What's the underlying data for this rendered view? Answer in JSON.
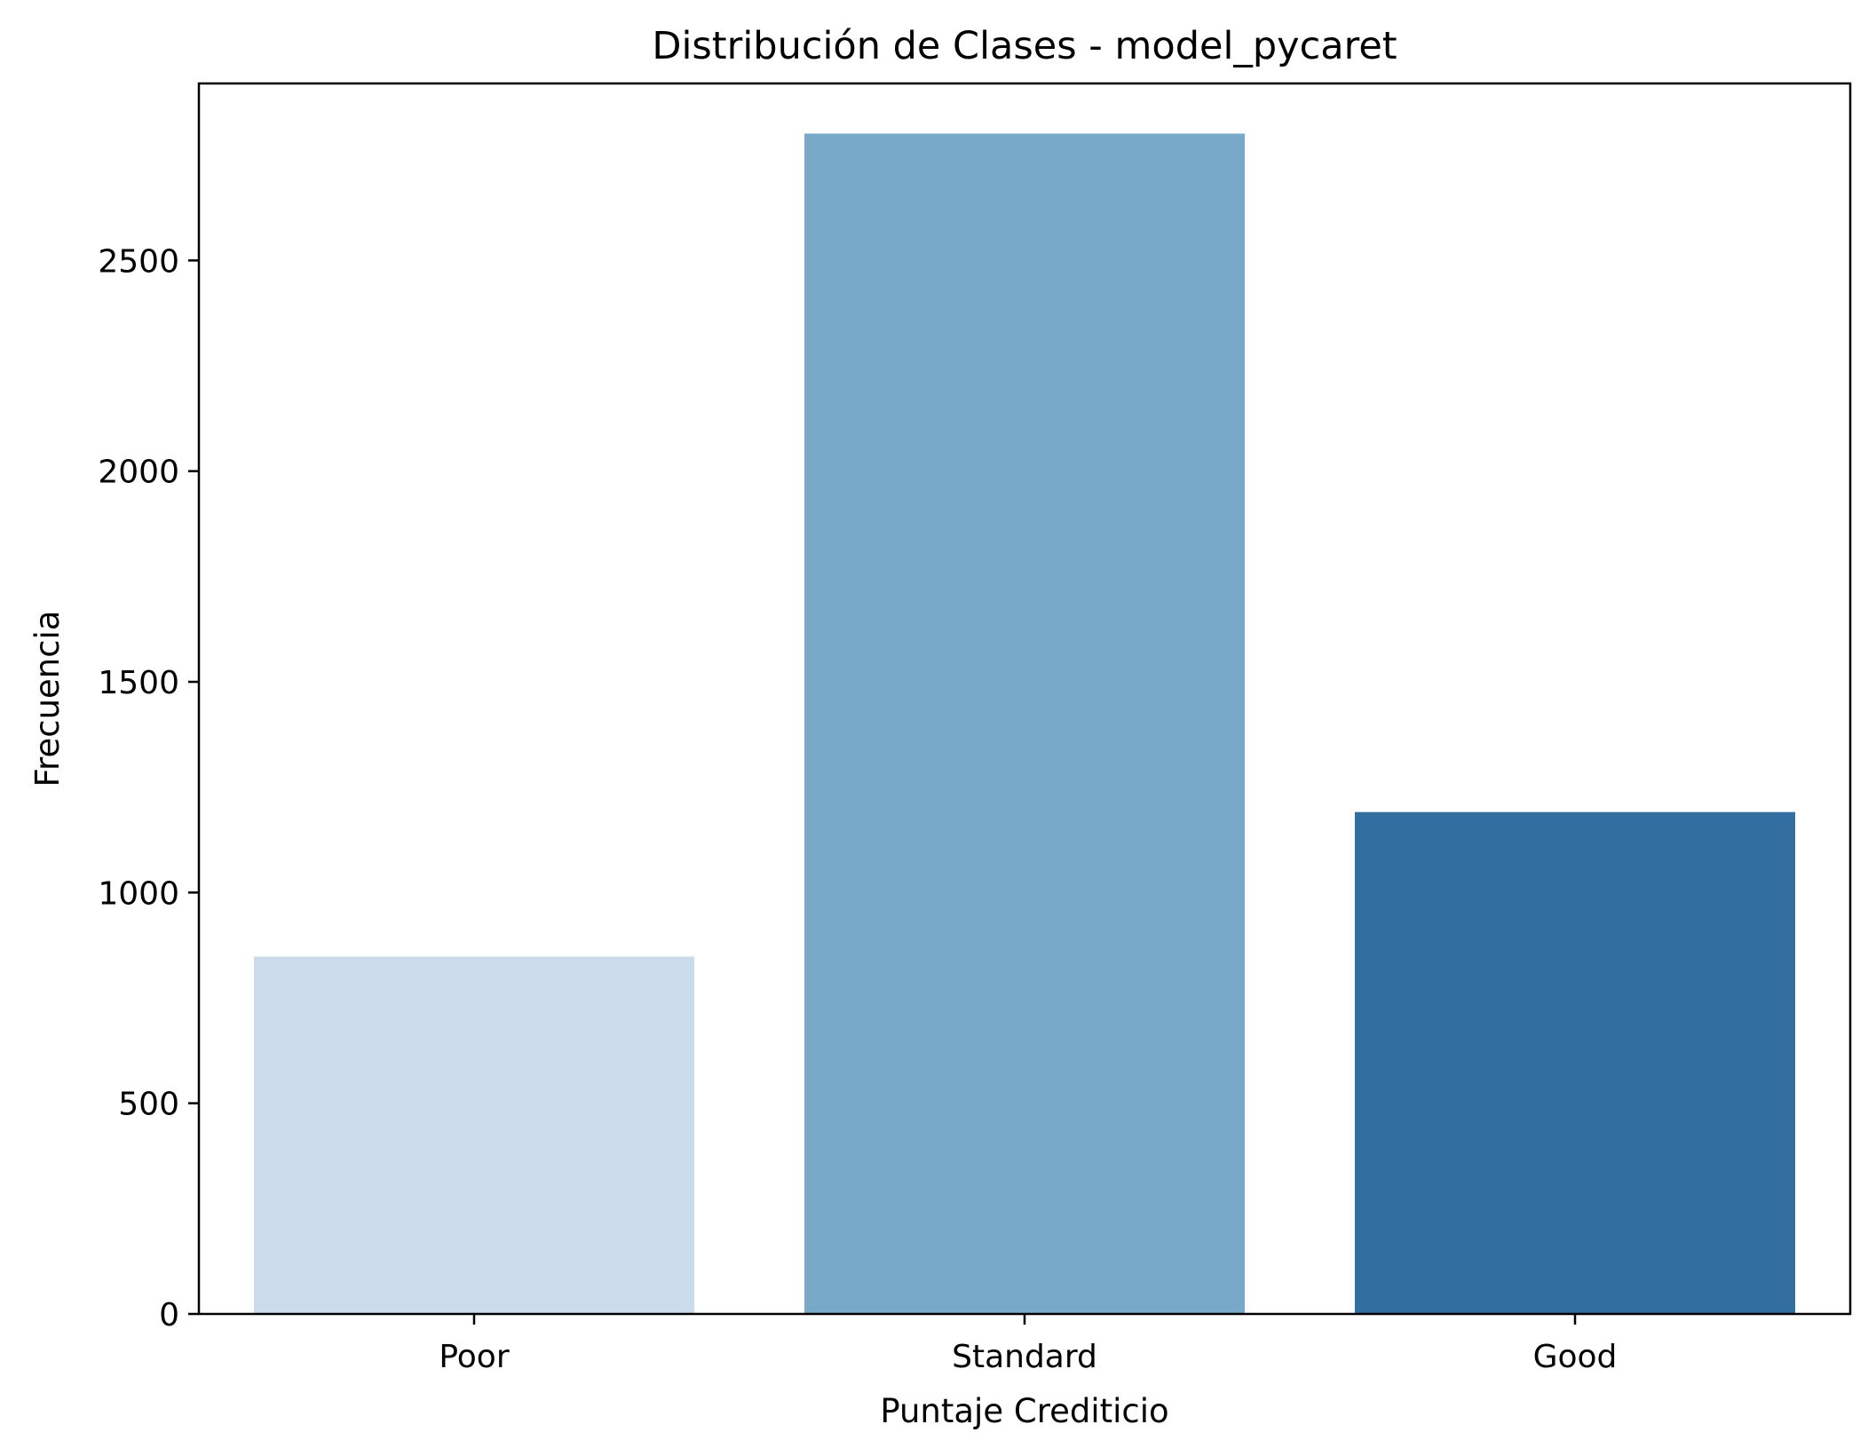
{
  "chart_data": {
    "type": "bar",
    "title": "Distribución de Clases - model_pycaret",
    "xlabel": "Puntaje Crediticio",
    "ylabel": "Frecuencia",
    "categories": [
      "Poor",
      "Standard",
      "Good"
    ],
    "values": [
      848,
      2801,
      1191
    ],
    "colors": [
      "#cbdbea",
      "#79a9c9",
      "#336ea1"
    ],
    "ylim": [
      0,
      2920
    ],
    "yticks": [
      0,
      500,
      1000,
      1500,
      2000,
      2500
    ],
    "ytick_labels": [
      "0",
      "500",
      "1000",
      "1500",
      "2000",
      "2500"
    ],
    "grid": false,
    "legend": "none"
  }
}
